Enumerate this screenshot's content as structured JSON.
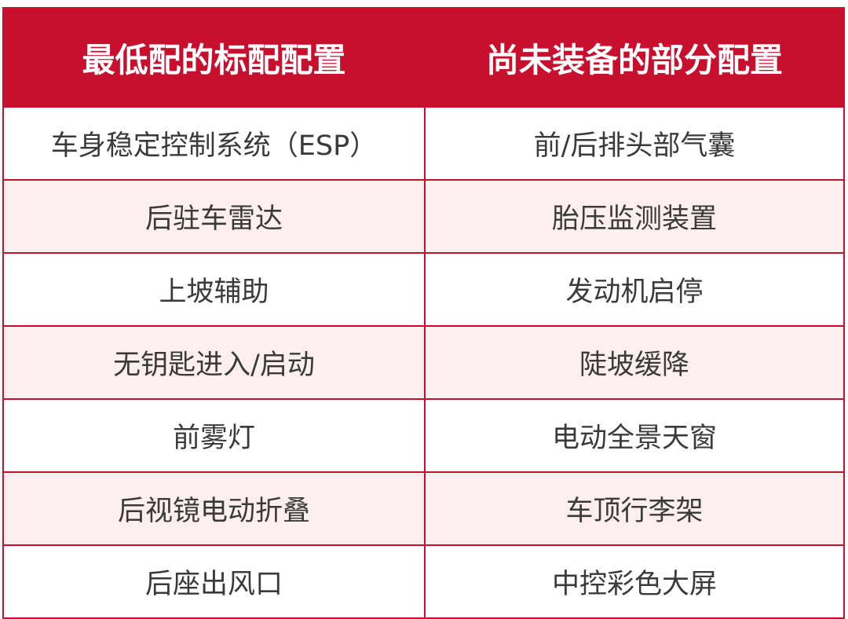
{
  "colors": {
    "header": "#c8102e",
    "alt_row": "#fdeeef",
    "border": "#c8102e",
    "text": "#3a3a3a"
  },
  "headers": [
    "最低配的标配配置",
    "尚未装备的部分配置"
  ],
  "rows": [
    [
      "车身稳定控制系统（ESP）",
      "前/后排头部气囊"
    ],
    [
      "后驻车雷达",
      "胎压监测装置"
    ],
    [
      "上坡辅助",
      "发动机启停"
    ],
    [
      "无钥匙进入/启动",
      "陡坡缓降"
    ],
    [
      "前雾灯",
      "电动全景天窗"
    ],
    [
      "后视镜电动折叠",
      "车顶行李架"
    ],
    [
      "后座出风口",
      "中控彩色大屏"
    ]
  ]
}
